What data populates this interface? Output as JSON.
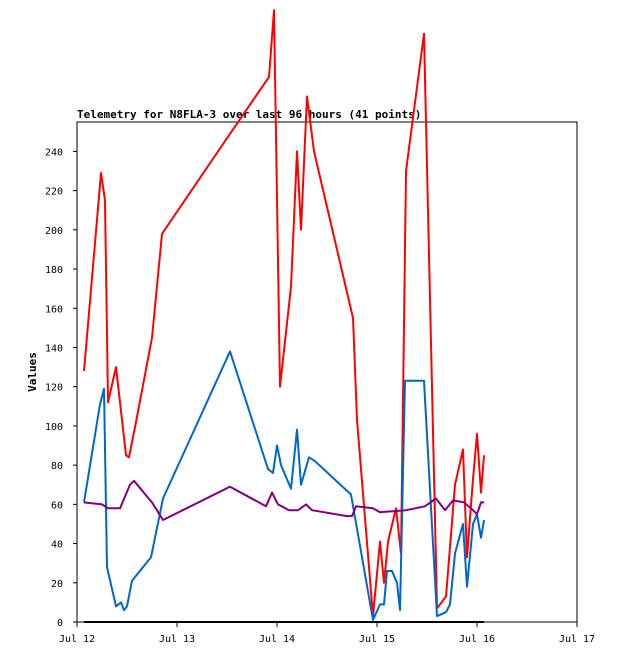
{
  "chart_data": {
    "type": "line",
    "title": "Telemetry for N8FLA-3 over last 96 hours (41 points)",
    "xlabel": "",
    "ylabel": "Values",
    "x_unit": "days since Jul 12",
    "xlim": [
      0,
      5
    ],
    "ylim": [
      0,
      255
    ],
    "x_ticks": [
      {
        "x": 0,
        "label": "Jul 12"
      },
      {
        "x": 1,
        "label": "Jul 13"
      },
      {
        "x": 2,
        "label": "Jul 14"
      },
      {
        "x": 3,
        "label": "Jul 15"
      },
      {
        "x": 4,
        "label": "Jul 16"
      },
      {
        "x": 5,
        "label": "Jul 17"
      }
    ],
    "y_ticks": [
      0,
      20,
      40,
      60,
      80,
      100,
      120,
      140,
      160,
      180,
      200,
      220,
      240
    ],
    "grid": false,
    "legend": "none",
    "series": [
      {
        "color": "#ff0000",
        "points": [
          [
            0.07,
            128
          ],
          [
            0.24,
            229
          ],
          [
            0.28,
            215
          ],
          [
            0.31,
            112
          ],
          [
            0.39,
            130
          ],
          [
            0.49,
            85
          ],
          [
            0.52,
            84
          ],
          [
            0.59,
            102
          ],
          [
            0.75,
            145
          ],
          [
            0.85,
            198
          ],
          [
            1.45,
            243
          ],
          [
            1.92,
            278
          ],
          [
            1.97,
            312
          ],
          [
            2.03,
            120
          ],
          [
            2.14,
            171
          ],
          [
            2.2,
            240
          ],
          [
            2.24,
            200
          ],
          [
            2.3,
            268
          ],
          [
            2.37,
            240
          ],
          [
            2.76,
            155
          ],
          [
            2.8,
            103
          ],
          [
            2.96,
            3
          ],
          [
            3.03,
            41
          ],
          [
            3.07,
            20
          ],
          [
            3.11,
            41
          ],
          [
            3.19,
            58
          ],
          [
            3.24,
            35
          ],
          [
            3.29,
            230
          ],
          [
            3.47,
            300
          ],
          [
            3.6,
            7
          ],
          [
            3.69,
            13
          ],
          [
            3.78,
            70
          ],
          [
            3.86,
            88
          ],
          [
            3.9,
            33
          ],
          [
            3.96,
            73
          ],
          [
            4.0,
            96
          ],
          [
            4.04,
            66
          ],
          [
            4.07,
            85
          ]
        ]
      },
      {
        "color": "#0066cc",
        "points": [
          [
            0.07,
            61
          ],
          [
            0.23,
            111
          ],
          [
            0.27,
            119
          ],
          [
            0.3,
            28
          ],
          [
            0.39,
            8
          ],
          [
            0.44,
            10
          ],
          [
            0.47,
            6
          ],
          [
            0.5,
            8
          ],
          [
            0.55,
            21
          ],
          [
            0.74,
            33
          ],
          [
            0.86,
            63
          ],
          [
            1.53,
            138
          ],
          [
            1.91,
            78
          ],
          [
            1.96,
            76
          ],
          [
            2.0,
            90
          ],
          [
            2.04,
            80
          ],
          [
            2.14,
            68
          ],
          [
            2.2,
            98
          ],
          [
            2.24,
            70
          ],
          [
            2.32,
            84
          ],
          [
            2.38,
            82
          ],
          [
            2.74,
            65
          ],
          [
            2.96,
            1
          ],
          [
            3.03,
            9
          ],
          [
            3.07,
            9
          ],
          [
            3.1,
            26
          ],
          [
            3.15,
            26
          ],
          [
            3.2,
            20
          ],
          [
            3.23,
            6
          ],
          [
            3.28,
            123
          ],
          [
            3.47,
            123
          ],
          [
            3.6,
            3
          ],
          [
            3.69,
            5
          ],
          [
            3.73,
            9
          ],
          [
            3.78,
            35
          ],
          [
            3.86,
            50
          ],
          [
            3.9,
            18
          ],
          [
            3.96,
            50
          ],
          [
            4.0,
            55
          ],
          [
            4.04,
            43
          ],
          [
            4.07,
            52
          ]
        ]
      },
      {
        "color": "#800080",
        "points": [
          [
            0.07,
            61
          ],
          [
            0.25,
            60
          ],
          [
            0.31,
            58
          ],
          [
            0.43,
            58
          ],
          [
            0.53,
            70
          ],
          [
            0.57,
            72
          ],
          [
            0.7,
            64
          ],
          [
            0.75,
            61
          ],
          [
            0.86,
            52
          ],
          [
            1.53,
            69
          ],
          [
            1.89,
            59
          ],
          [
            1.95,
            66
          ],
          [
            2.01,
            60
          ],
          [
            2.12,
            57
          ],
          [
            2.21,
            57
          ],
          [
            2.29,
            60
          ],
          [
            2.35,
            57
          ],
          [
            2.7,
            54
          ],
          [
            2.75,
            54
          ],
          [
            2.79,
            59
          ],
          [
            2.96,
            58
          ],
          [
            3.03,
            56
          ],
          [
            3.29,
            57
          ],
          [
            3.48,
            59
          ],
          [
            3.59,
            63
          ],
          [
            3.68,
            57
          ],
          [
            3.76,
            62
          ],
          [
            3.87,
            61
          ],
          [
            3.94,
            58
          ],
          [
            4.0,
            55
          ],
          [
            4.04,
            61
          ],
          [
            4.07,
            61
          ]
        ]
      },
      {
        "color": "#000000",
        "points": [
          [
            0.07,
            0
          ],
          [
            4.07,
            0
          ]
        ]
      }
    ]
  }
}
